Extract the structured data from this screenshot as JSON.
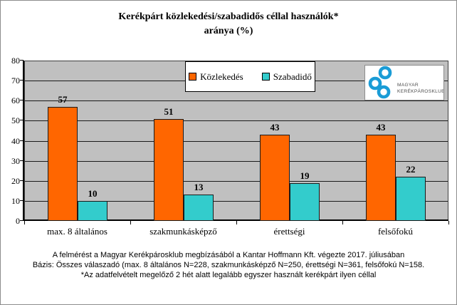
{
  "chart_data": {
    "type": "bar",
    "title": "Kerékpárt közlekedési/szabadidős céllal használók* aránya (%)",
    "title_lines": [
      "Kerékpárt közlekedési/szabadidős céllal használók*",
      "aránya (%)"
    ],
    "categories": [
      "max. 8 általános",
      "szakmunkásképző",
      "érettségi",
      "felsőfokú"
    ],
    "series": [
      {
        "name": "Közlekedés",
        "color": "#FF6600",
        "values": [
          57,
          51,
          43,
          43
        ]
      },
      {
        "name": "Szabadidő",
        "color": "#33CCCC",
        "values": [
          10,
          13,
          19,
          22
        ]
      }
    ],
    "ylim": [
      0,
      80
    ],
    "ytick_step": 10,
    "grid": true,
    "legend_position": "top-center",
    "plot_background": "#C0C0C0"
  },
  "logo": {
    "line1": "MAGYAR",
    "line2": "KERÉKPÁROSKLUB",
    "ring_color": "#1A9CD6"
  },
  "footer": {
    "lines": [
      "A felmérést a Magyar Kerékpárosklub megbízásából a Kantar Hoffmann Kft. végezte 2017. júliusában",
      "Bázis: Összes válaszadó  (max. 8 általános  N=228, szakmunkásképző N=250,  érettségi N=361,  felsőfokú N=158.",
      "*Az adatfelvételt megelőző 2 hét alatt legalább egyszer használt kerékpárt ilyen céllal"
    ]
  }
}
